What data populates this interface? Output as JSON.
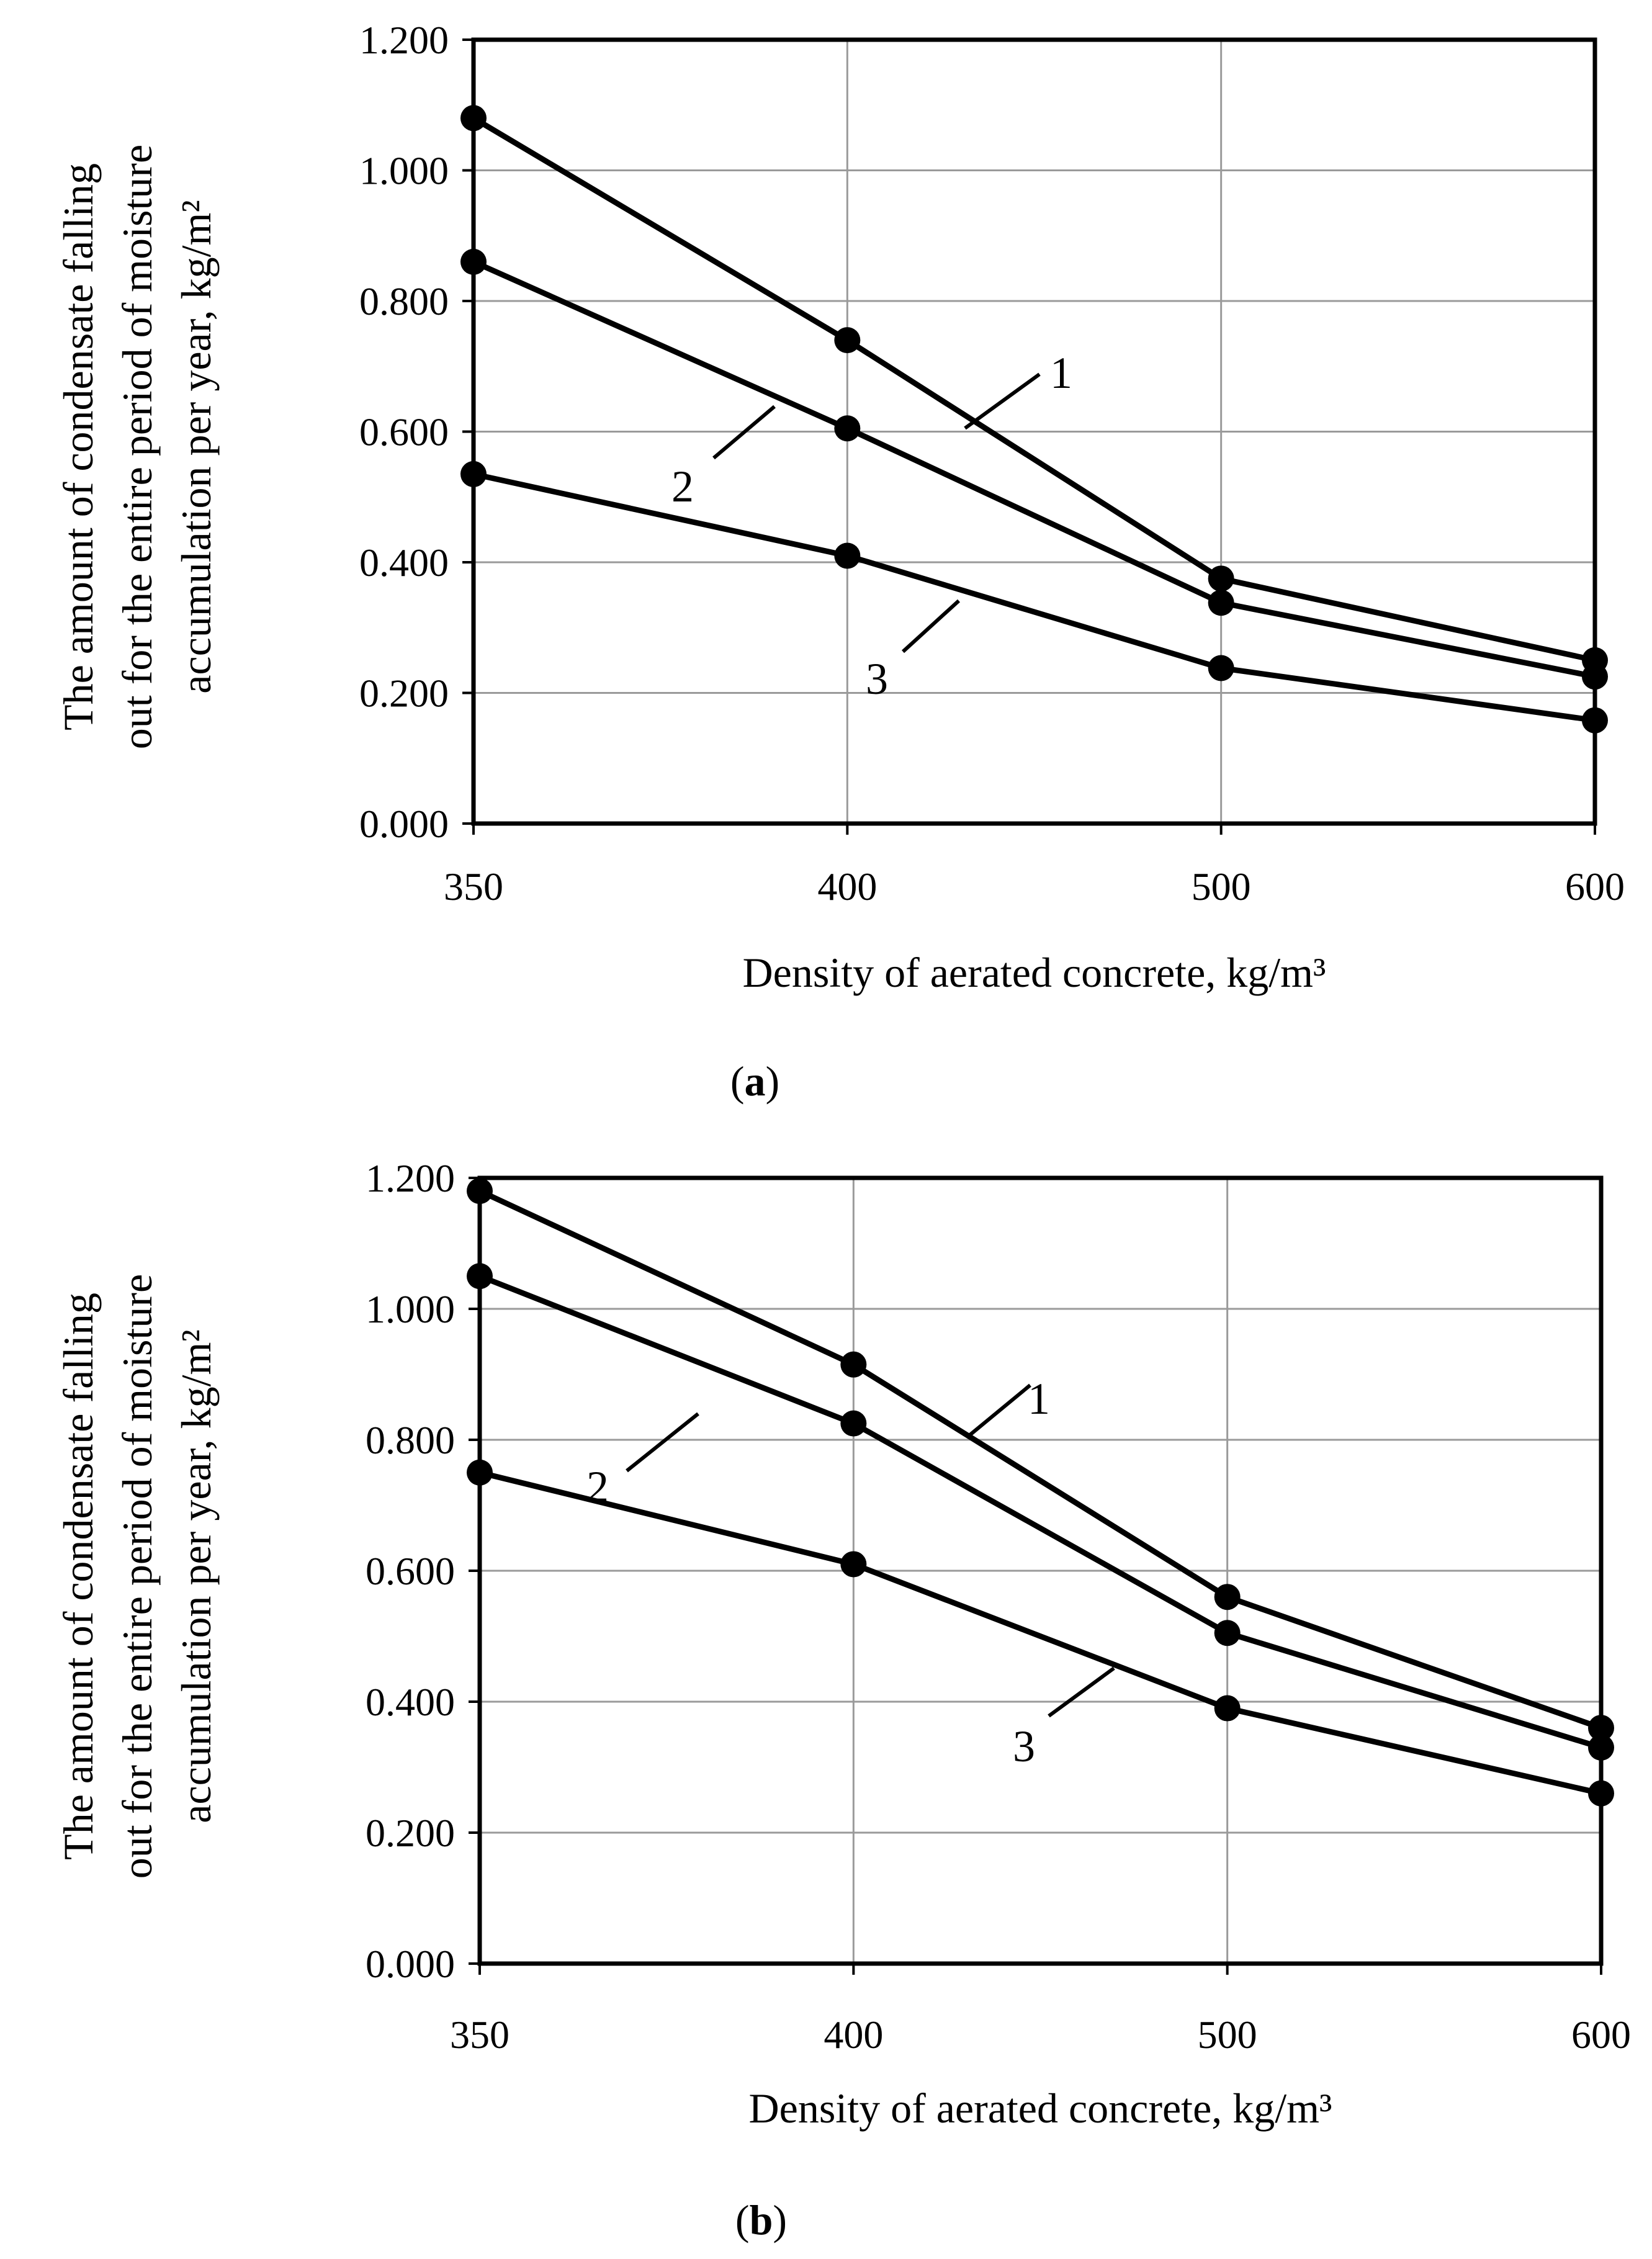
{
  "chart_data": [
    {
      "type": "line",
      "panel": "a",
      "caption_letter": "a",
      "x": [
        350,
        400,
        500,
        600
      ],
      "xticks": [
        "350",
        "400",
        "500",
        "600"
      ],
      "yticks": [
        "0.000",
        "0.200",
        "0.400",
        "0.600",
        "0.800",
        "1.000",
        "1.200"
      ],
      "ylim": [
        0,
        1.2
      ],
      "grid": true,
      "xlabel": "Density of aerated concrete, kg/m³",
      "ylabel_lines": [
        "The amount of condensate falling",
        "out for the entire period of moisture",
        "accumulation per year, kg/m²"
      ],
      "series": [
        {
          "name": "1",
          "values": [
            1.08,
            0.74,
            0.375,
            0.25
          ]
        },
        {
          "name": "2",
          "values": [
            0.86,
            0.605,
            0.338,
            0.225
          ]
        },
        {
          "name": "3",
          "values": [
            0.535,
            0.41,
            0.238,
            0.158
          ]
        }
      ]
    },
    {
      "type": "line",
      "panel": "b",
      "caption_letter": "b",
      "x": [
        350,
        400,
        500,
        600
      ],
      "xticks": [
        "350",
        "400",
        "500",
        "600"
      ],
      "yticks": [
        "0.000",
        "0.200",
        "0.400",
        "0.600",
        "0.800",
        "1.000",
        "1.200"
      ],
      "ylim": [
        0,
        1.2
      ],
      "grid": true,
      "xlabel": "Density of aerated concrete, kg/m³",
      "ylabel_lines": [
        "The amount of condensate falling",
        "out for the entire period of moisture",
        "accumulation per year, kg/m²"
      ],
      "series": [
        {
          "name": "1",
          "values": [
            1.18,
            0.915,
            0.56,
            0.36
          ]
        },
        {
          "name": "2",
          "values": [
            1.05,
            0.825,
            0.505,
            0.33
          ]
        },
        {
          "name": "3",
          "values": [
            0.75,
            0.61,
            0.39,
            0.26
          ]
        }
      ]
    }
  ]
}
